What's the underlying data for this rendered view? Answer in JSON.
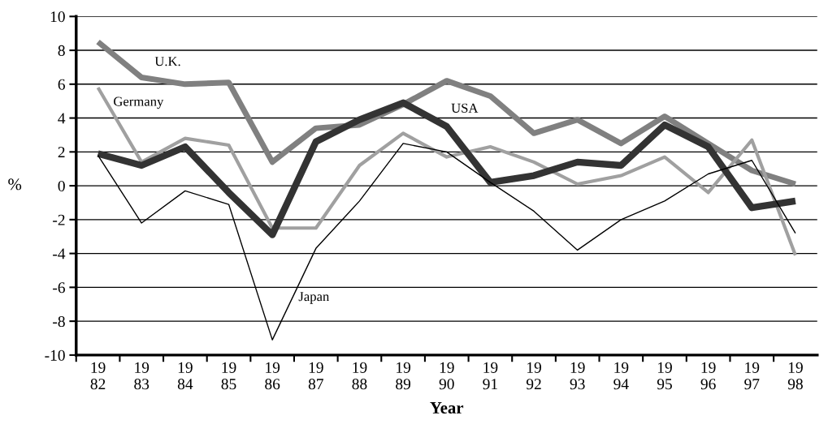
{
  "chart_data": {
    "type": "line",
    "xlabel": "Year",
    "ylabel": "%",
    "categories": [
      "19\n82",
      "19\n83",
      "19\n84",
      "19\n85",
      "19\n86",
      "19\n87",
      "19\n88",
      "19\n89",
      "19\n90",
      "19\n91",
      "19\n92",
      "19\n93",
      "19\n94",
      "19\n95",
      "19\n96",
      "19\n97",
      "19\n98"
    ],
    "series": [
      {
        "name": "U.K.",
        "color": "#808080",
        "values": [
          8.5,
          6.4,
          6.0,
          6.1,
          1.4,
          3.4,
          3.6,
          4.8,
          6.2,
          5.3,
          3.1,
          3.9,
          2.5,
          4.1,
          2.5,
          0.9,
          0.1
        ]
      },
      {
        "name": "Germany",
        "color": "#a0a0a0",
        "values": [
          5.8,
          1.4,
          2.8,
          2.4,
          -2.5,
          -2.5,
          1.2,
          3.1,
          1.7,
          2.3,
          1.4,
          0.1,
          0.6,
          1.7,
          -0.4,
          2.7,
          -4.1
        ]
      },
      {
        "name": "USA",
        "color": "#333333",
        "values": [
          1.9,
          1.2,
          2.3,
          -0.4,
          -2.9,
          2.6,
          3.9,
          4.9,
          3.5,
          0.2,
          0.6,
          1.4,
          1.2,
          3.6,
          2.3,
          -1.3,
          -0.9
        ]
      },
      {
        "name": "Japan",
        "color": "#000000",
        "values": [
          1.8,
          -2.2,
          -0.3,
          -1.1,
          -9.1,
          -3.7,
          -0.9,
          2.5,
          2.0,
          0.2,
          -1.5,
          -3.8,
          -2.0,
          -0.9,
          0.7,
          1.5,
          -2.8
        ]
      }
    ],
    "ylim": [
      -10,
      10
    ],
    "yticks": [
      -10,
      -8,
      -6,
      -4,
      -2,
      0,
      2,
      4,
      6,
      8,
      10
    ],
    "grid": "y",
    "legend": false,
    "marker": "none",
    "line_style": "solid"
  }
}
